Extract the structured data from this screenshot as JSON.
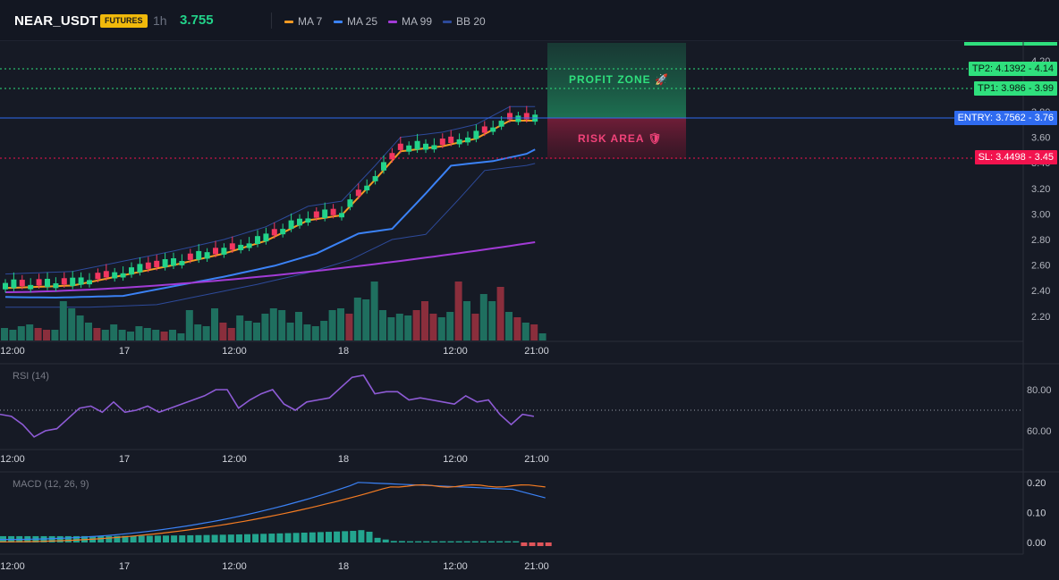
{
  "header": {
    "symbol": "NEAR_USDT",
    "badge": "FUTURES",
    "timeframe": "1h",
    "price": "3.755",
    "legend": [
      {
        "label": "MA 7",
        "color": "#f59a23"
      },
      {
        "label": "MA 25",
        "color": "#3b82f6"
      },
      {
        "label": "MA 99",
        "color": "#a23bd6"
      },
      {
        "label": "BB 20",
        "color": "#2d4a9a"
      }
    ]
  },
  "colors": {
    "up": "#22d38a",
    "down": "#f23660",
    "vol_up": "#1f6f5f",
    "vol_down": "#8a2e3c",
    "ma7": "#f59a23",
    "ma25": "#3b82f6",
    "ma99": "#a23bd6",
    "bb": "#2d4a9a",
    "rsi": "#8e5bd6",
    "macd": "#3b82f6",
    "signal": "#f57c22"
  },
  "price_axis": {
    "ticks": [
      "4.20",
      "4.00",
      "3.80",
      "3.60",
      "3.40",
      "3.20",
      "3.00",
      "2.80",
      "2.60",
      "2.40",
      "2.20"
    ]
  },
  "time_axis": {
    "labels": [
      "12:00",
      "17",
      "12:00",
      "18",
      "12:00",
      "21:00"
    ]
  },
  "levels": {
    "tp2": {
      "label": "TP2: 4.1392",
      "value": "4.14",
      "color": "#2fe07d"
    },
    "tp1": {
      "label": "TP1: 3.986",
      "value": "3.99",
      "color": "#2fe07d"
    },
    "entry": {
      "label": "ENTRY: 3.7562",
      "value": "3.76",
      "color": "#2f6bf0"
    },
    "sl": {
      "label": "SL: 3.4498",
      "value": "3.45",
      "color": "#f2134e"
    }
  },
  "zones": {
    "profit": "PROFIT ZONE 🚀",
    "risk": "RISK AREA 🛡"
  },
  "rsi": {
    "label": "RSI (14)",
    "ticks": [
      "80.00",
      "60.00"
    ],
    "values": [
      68,
      67,
      63,
      57,
      60,
      61,
      66,
      71,
      72,
      69,
      74,
      69,
      70,
      72,
      69,
      71,
      73,
      75,
      77,
      80,
      80,
      71,
      75,
      78,
      80,
      73,
      70,
      74,
      75,
      76,
      81,
      86,
      87,
      78,
      79,
      79,
      75,
      76,
      75,
      74,
      73,
      77,
      74,
      75,
      68,
      63,
      68,
      67
    ]
  },
  "macd": {
    "label": "MACD (12, 26, 9)",
    "ticks": [
      "0.20",
      "0.10",
      "0.00"
    ]
  }
}
